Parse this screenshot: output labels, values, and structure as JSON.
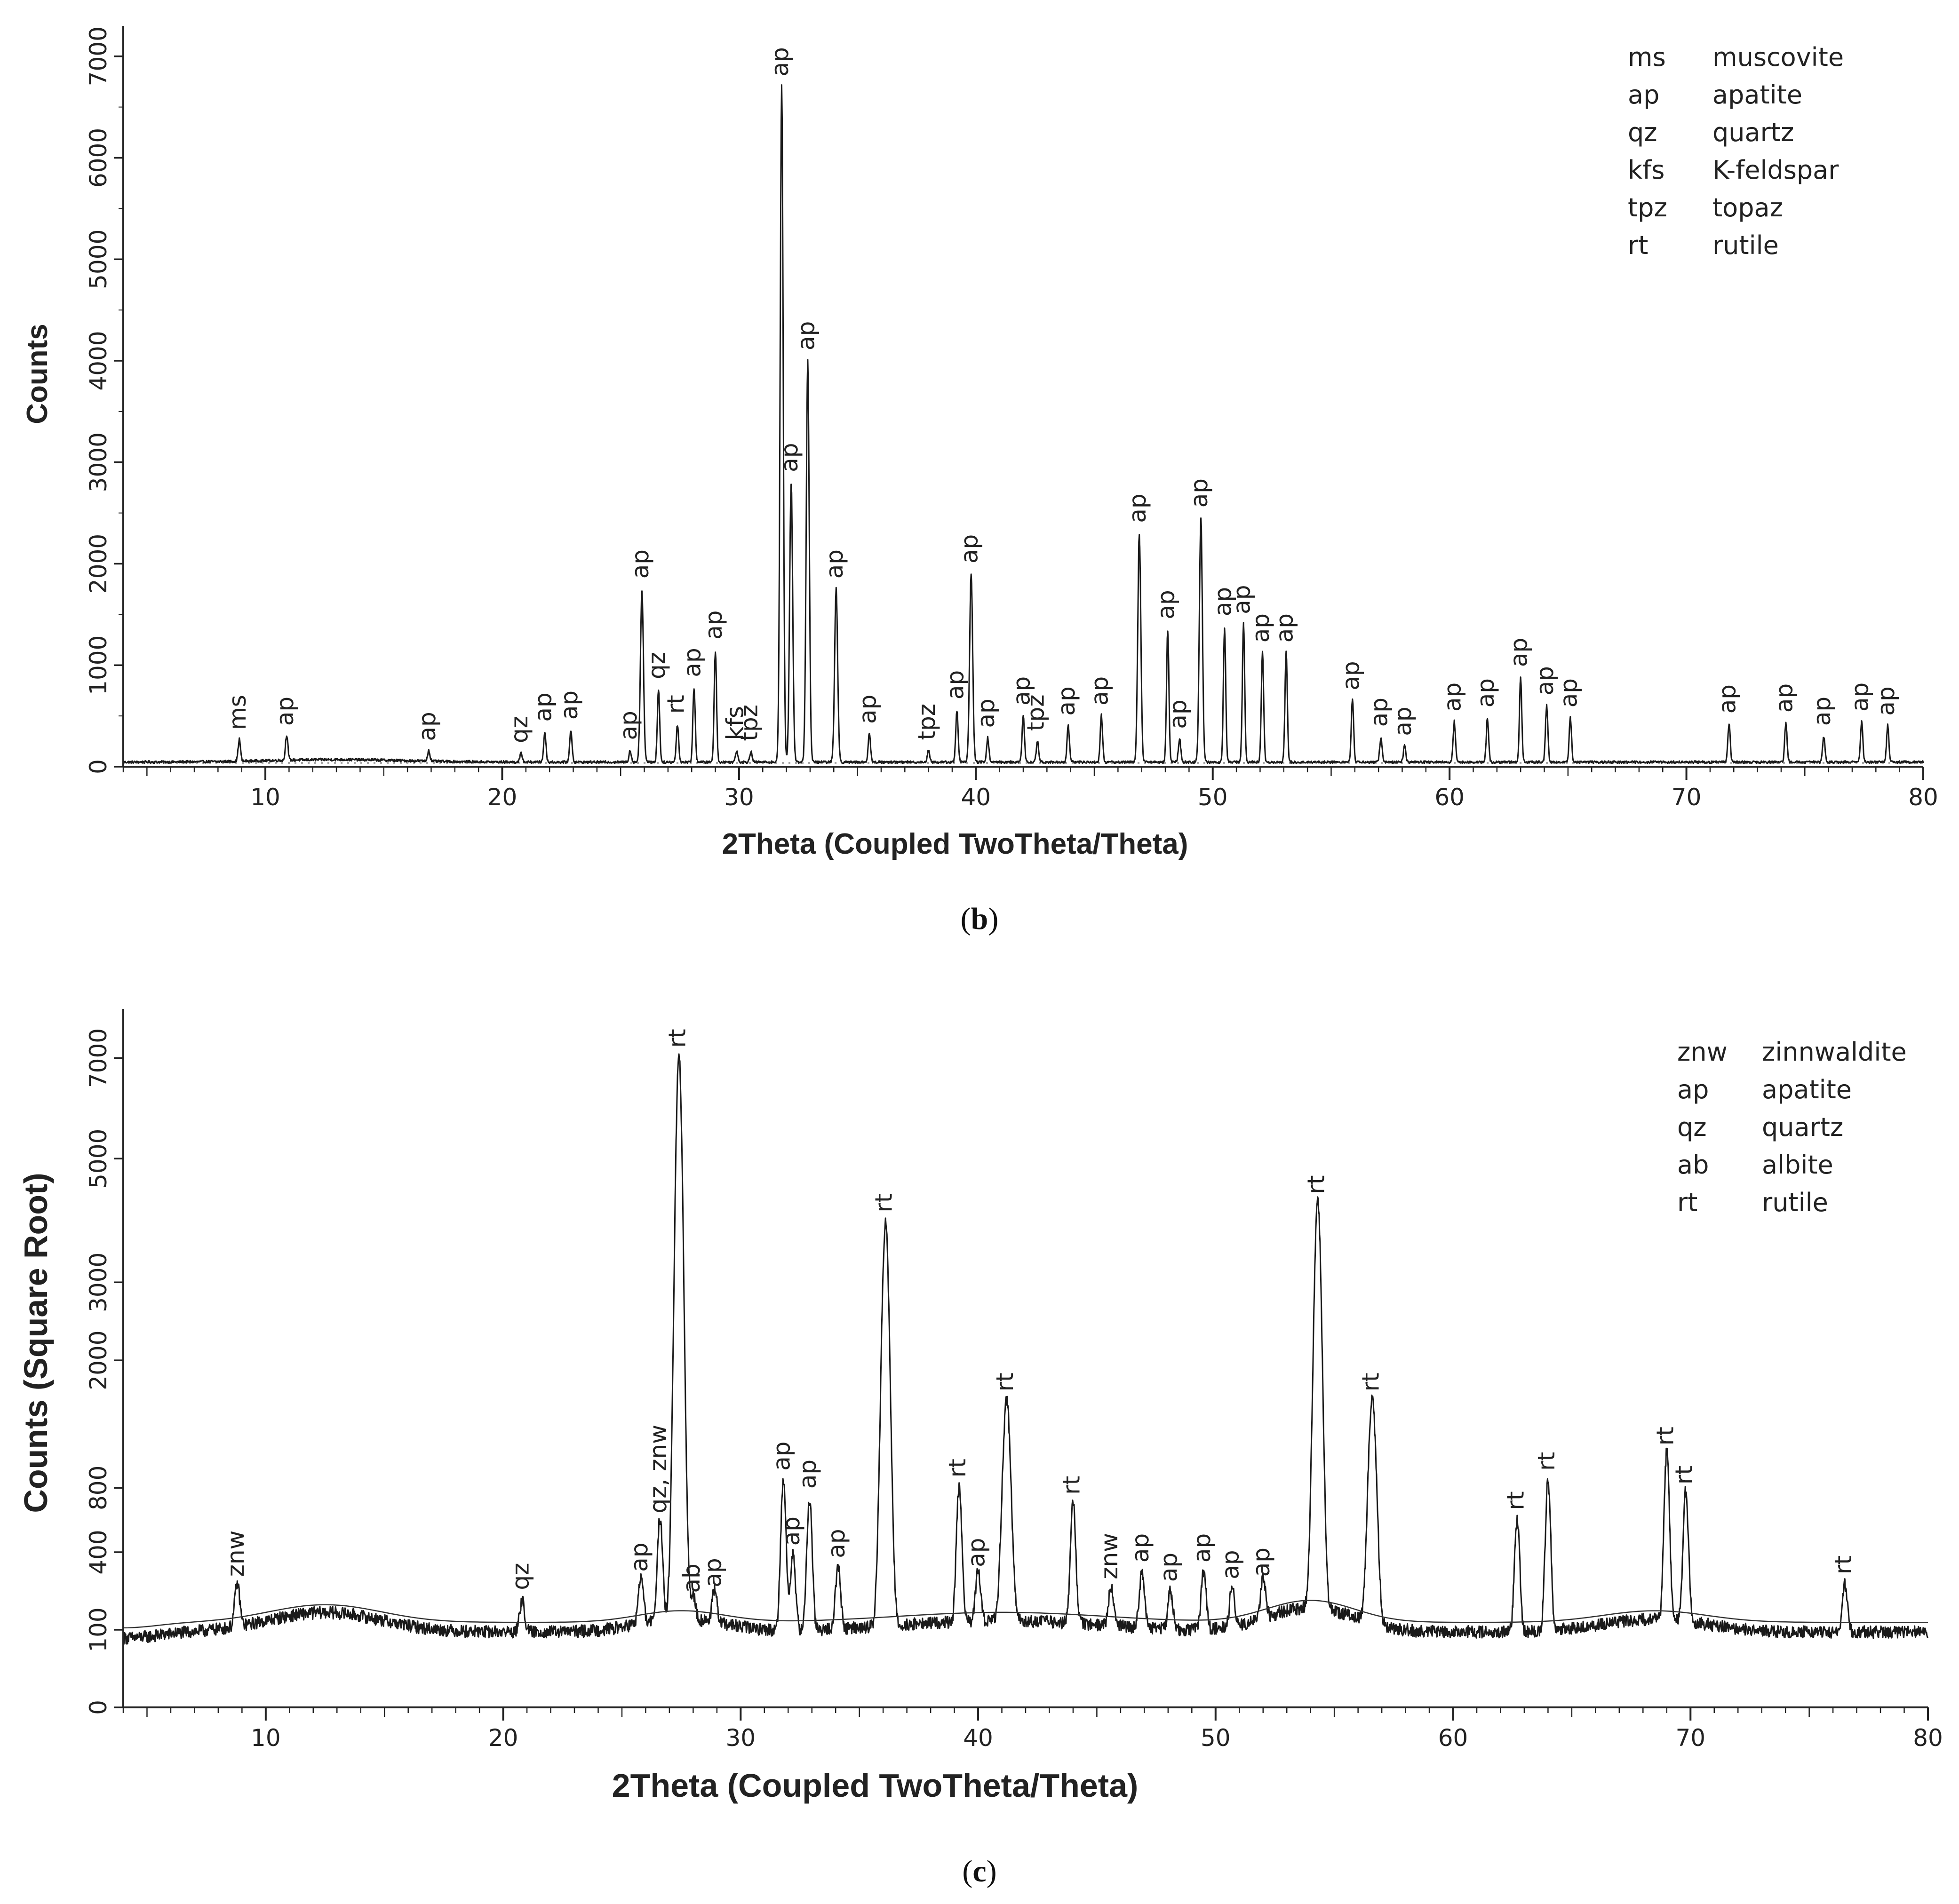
{
  "chart_data": [
    {
      "type": "line",
      "panel": "b",
      "caption_letter": "b",
      "xlabel": "2Theta (Coupled TwoTheta/Theta)",
      "ylabel": "Counts",
      "xlim": [
        4,
        80
      ],
      "ylim": [
        0,
        7300
      ],
      "xticks": [
        10,
        20,
        30,
        40,
        50,
        60,
        70,
        80
      ],
      "yticks": [
        0,
        1000,
        2000,
        3000,
        4000,
        5000,
        6000,
        7000
      ],
      "baseline": 45,
      "legend": [
        {
          "code": "ms",
          "name": "muscovite"
        },
        {
          "code": "ap",
          "name": "apatite"
        },
        {
          "code": "qz",
          "name": "quartz"
        },
        {
          "code": "kfs",
          "name": "K-feldspar"
        },
        {
          "code": "tpz",
          "name": "topaz"
        },
        {
          "code": "rt",
          "name": "rutile"
        }
      ],
      "peaks": [
        {
          "x": 8.9,
          "y": 260,
          "label": "ms"
        },
        {
          "x": 10.9,
          "y": 300,
          "label": "ap"
        },
        {
          "x": 16.9,
          "y": 150,
          "label": "ap"
        },
        {
          "x": 20.8,
          "y": 130,
          "label": "qz"
        },
        {
          "x": 21.8,
          "y": 340,
          "label": "ap"
        },
        {
          "x": 22.9,
          "y": 360,
          "label": "ap"
        },
        {
          "x": 25.4,
          "y": 160,
          "label": "ap"
        },
        {
          "x": 25.9,
          "y": 1750,
          "label": "ap"
        },
        {
          "x": 26.6,
          "y": 760,
          "label": "qz"
        },
        {
          "x": 27.4,
          "y": 420,
          "label": "rt"
        },
        {
          "x": 28.1,
          "y": 780,
          "label": "ap"
        },
        {
          "x": 29.0,
          "y": 1150,
          "label": "ap"
        },
        {
          "x": 29.9,
          "y": 160,
          "label": "kfs"
        },
        {
          "x": 30.5,
          "y": 150,
          "label": "tpz"
        },
        {
          "x": 31.8,
          "y": 6700,
          "label": "ap"
        },
        {
          "x": 32.2,
          "y": 2800,
          "label": "ap"
        },
        {
          "x": 32.9,
          "y": 4000,
          "label": "ap"
        },
        {
          "x": 34.1,
          "y": 1750,
          "label": "ap"
        },
        {
          "x": 35.5,
          "y": 320,
          "label": "ap"
        },
        {
          "x": 38.0,
          "y": 160,
          "label": "tpz"
        },
        {
          "x": 39.2,
          "y": 560,
          "label": "ap"
        },
        {
          "x": 39.8,
          "y": 1900,
          "label": "ap"
        },
        {
          "x": 40.5,
          "y": 280,
          "label": "ap"
        },
        {
          "x": 42.0,
          "y": 500,
          "label": "ap"
        },
        {
          "x": 42.6,
          "y": 250,
          "label": "tpz"
        },
        {
          "x": 43.9,
          "y": 400,
          "label": "ap"
        },
        {
          "x": 45.3,
          "y": 500,
          "label": "ap"
        },
        {
          "x": 46.9,
          "y": 2300,
          "label": "ap"
        },
        {
          "x": 48.1,
          "y": 1350,
          "label": "ap"
        },
        {
          "x": 48.6,
          "y": 270,
          "label": "ap"
        },
        {
          "x": 49.5,
          "y": 2450,
          "label": "ap"
        },
        {
          "x": 50.5,
          "y": 1380,
          "label": "ap"
        },
        {
          "x": 51.3,
          "y": 1400,
          "label": "ap"
        },
        {
          "x": 52.1,
          "y": 1120,
          "label": "ap"
        },
        {
          "x": 53.1,
          "y": 1120,
          "label": "ap"
        },
        {
          "x": 55.9,
          "y": 650,
          "label": "ap"
        },
        {
          "x": 57.1,
          "y": 290,
          "label": "ap"
        },
        {
          "x": 58.1,
          "y": 200,
          "label": "ap"
        },
        {
          "x": 60.2,
          "y": 440,
          "label": "ap"
        },
        {
          "x": 61.6,
          "y": 480,
          "label": "ap"
        },
        {
          "x": 63.0,
          "y": 880,
          "label": "ap"
        },
        {
          "x": 64.1,
          "y": 600,
          "label": "ap"
        },
        {
          "x": 65.1,
          "y": 480,
          "label": "ap"
        },
        {
          "x": 71.8,
          "y": 420,
          "label": "ap"
        },
        {
          "x": 74.2,
          "y": 430,
          "label": "ap"
        },
        {
          "x": 75.8,
          "y": 300,
          "label": "ap"
        },
        {
          "x": 77.4,
          "y": 440,
          "label": "ap"
        },
        {
          "x": 78.5,
          "y": 400,
          "label": "ap"
        }
      ]
    },
    {
      "type": "line",
      "panel": "c",
      "caption_letter": "c",
      "xlabel": "2Theta (Coupled TwoTheta/Theta)",
      "ylabel": "Counts (Square Root)",
      "scale": "sqrt",
      "xlim": [
        4,
        80
      ],
      "ylim": [
        0,
        8100
      ],
      "xticks": [
        10,
        20,
        30,
        40,
        50,
        60,
        70,
        80
      ],
      "yticks": [
        0,
        100,
        400,
        800,
        2000,
        3000,
        5000,
        7000
      ],
      "baseline": 95,
      "legend": [
        {
          "code": "znw",
          "name": "zinnwaldite"
        },
        {
          "code": "ap",
          "name": "apatite"
        },
        {
          "code": "qz",
          "name": "quartz"
        },
        {
          "code": "ab",
          "name": "albite"
        },
        {
          "code": "rt",
          "name": "rutile"
        }
      ],
      "peaks": [
        {
          "x": 8.8,
          "y": 240,
          "label": "znw"
        },
        {
          "x": 20.8,
          "y": 190,
          "label": "qz"
        },
        {
          "x": 25.8,
          "y": 260,
          "label": "ap"
        },
        {
          "x": 26.6,
          "y": 560,
          "label": "qz, znw"
        },
        {
          "x": 27.4,
          "y": 7000,
          "label": "rt"
        },
        {
          "x": 28.0,
          "y": 180,
          "label": "ab"
        },
        {
          "x": 28.9,
          "y": 200,
          "label": "ap"
        },
        {
          "x": 31.8,
          "y": 850,
          "label": "ap"
        },
        {
          "x": 32.2,
          "y": 380,
          "label": "ap"
        },
        {
          "x": 32.9,
          "y": 720,
          "label": "ap"
        },
        {
          "x": 34.1,
          "y": 320,
          "label": "ap"
        },
        {
          "x": 36.1,
          "y": 3900,
          "label": "rt"
        },
        {
          "x": 39.2,
          "y": 800,
          "label": "rt"
        },
        {
          "x": 40.0,
          "y": 280,
          "label": "ap"
        },
        {
          "x": 41.2,
          "y": 1550,
          "label": "rt"
        },
        {
          "x": 44.0,
          "y": 680,
          "label": "rt"
        },
        {
          "x": 45.6,
          "y": 230,
          "label": "znw"
        },
        {
          "x": 46.9,
          "y": 300,
          "label": "ap"
        },
        {
          "x": 48.1,
          "y": 220,
          "label": "ap"
        },
        {
          "x": 49.5,
          "y": 300,
          "label": "ap"
        },
        {
          "x": 50.7,
          "y": 230,
          "label": "ap"
        },
        {
          "x": 52.0,
          "y": 240,
          "label": "ap"
        },
        {
          "x": 54.3,
          "y": 4200,
          "label": "rt"
        },
        {
          "x": 56.6,
          "y": 1550,
          "label": "rt"
        },
        {
          "x": 62.7,
          "y": 580,
          "label": "rt"
        },
        {
          "x": 64.0,
          "y": 850,
          "label": "rt"
        },
        {
          "x": 69.0,
          "y": 1050,
          "label": "rt"
        },
        {
          "x": 69.8,
          "y": 750,
          "label": "rt"
        },
        {
          "x": 76.5,
          "y": 250,
          "label": "rt"
        }
      ]
    }
  ]
}
